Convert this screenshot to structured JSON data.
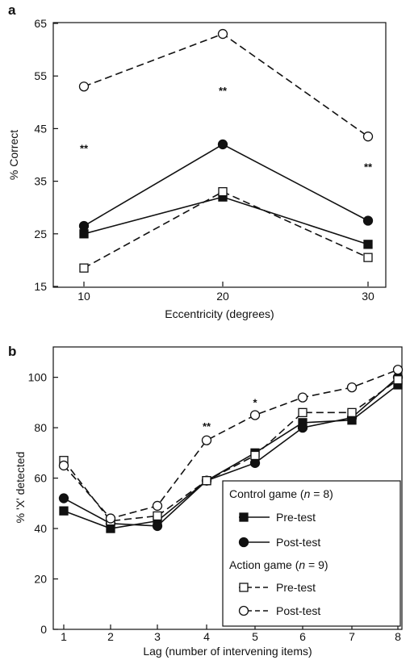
{
  "chart_data": [
    {
      "panel": "a",
      "type": "line",
      "xlabel": "Eccentricity (degrees)",
      "ylabel": "% Correct",
      "x": [
        10,
        20,
        30
      ],
      "ylim": [
        15,
        65
      ],
      "yticks": [
        15,
        25,
        35,
        45,
        55,
        65
      ],
      "xticks": [
        10,
        20,
        30
      ],
      "series": [
        {
          "group": "control",
          "test": "pre",
          "style": "solid",
          "marker": "filled-square",
          "values": [
            25,
            32,
            23
          ]
        },
        {
          "group": "control",
          "test": "post",
          "style": "solid",
          "marker": "filled-circle",
          "values": [
            26.5,
            42,
            27.5
          ]
        },
        {
          "group": "action",
          "test": "pre",
          "style": "dashed",
          "marker": "open-square",
          "values": [
            18.5,
            33,
            20.5
          ]
        },
        {
          "group": "action",
          "test": "post",
          "style": "dashed",
          "marker": "open-circle",
          "values": [
            53,
            63,
            43.5
          ]
        }
      ],
      "annotations": [
        {
          "text": "**",
          "x": 10,
          "y": 40.5
        },
        {
          "text": "**",
          "x": 20,
          "y": 51.5
        },
        {
          "text": "**",
          "x": 30,
          "y": 37
        }
      ]
    },
    {
      "panel": "b",
      "type": "line",
      "xlabel": "Lag (number of intervening items)",
      "ylabel": "% 'X' detected",
      "x": [
        1,
        2,
        3,
        4,
        5,
        6,
        7,
        8
      ],
      "ylim": [
        0,
        105
      ],
      "yticks": [
        0,
        20,
        40,
        60,
        80,
        100
      ],
      "xticks": [
        1,
        2,
        3,
        4,
        5,
        6,
        7,
        8
      ],
      "series": [
        {
          "group": "control",
          "test": "pre",
          "style": "solid",
          "marker": "filled-square",
          "values": [
            47,
            40,
            43,
            59,
            70,
            82,
            83,
            97
          ]
        },
        {
          "group": "control",
          "test": "post",
          "style": "solid",
          "marker": "filled-circle",
          "values": [
            52,
            42,
            41,
            59,
            66,
            80,
            84,
            100
          ]
        },
        {
          "group": "action",
          "test": "pre",
          "style": "dashed",
          "marker": "open-square",
          "values": [
            67,
            43,
            45,
            59,
            69,
            86,
            86,
            99
          ]
        },
        {
          "group": "action",
          "test": "post",
          "style": "dashed",
          "marker": "open-circle",
          "values": [
            65,
            44,
            49,
            75,
            85,
            92,
            96,
            103
          ]
        }
      ],
      "annotations": [
        {
          "text": "**",
          "x": 4,
          "y": 79
        },
        {
          "text": "*",
          "x": 5,
          "y": 88.5
        }
      ],
      "legend": {
        "placement": "bottom-right",
        "groups": [
          {
            "title_prefix": "Control game (",
            "n_label": "n",
            "n_value": " = 8)",
            "items": [
              {
                "label": "Pre-test",
                "series": 0
              },
              {
                "label": "Post-test",
                "series": 1
              }
            ]
          },
          {
            "title_prefix": "Action game (",
            "n_label": "n",
            "n_value": " = 9)",
            "items": [
              {
                "label": "Pre-test",
                "series": 2
              },
              {
                "label": "Post-test",
                "series": 3
              }
            ]
          }
        ]
      }
    }
  ]
}
